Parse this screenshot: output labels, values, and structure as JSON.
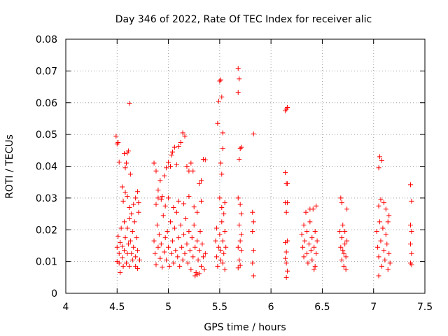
{
  "chart_data": {
    "type": "scatter",
    "title": "Day 346 of 2022, Rate Of TEC Index for receiver alic",
    "xlabel": "GPS time / hours",
    "ylabel": "ROTI / TECUs",
    "xlim": [
      4,
      7.5
    ],
    "ylim": [
      0,
      0.08
    ],
    "xticks": [
      4,
      4.5,
      5,
      5.5,
      6,
      6.5,
      7,
      7.5
    ],
    "xtick_labels": [
      "4",
      "4.5",
      "5",
      "5.5",
      "6",
      "6.5",
      "7",
      "7.5"
    ],
    "yticks": [
      0,
      0.01,
      0.02,
      0.03,
      0.04,
      0.05,
      0.06,
      0.07,
      0.08
    ],
    "ytick_labels": [
      "0",
      "0.01",
      "0.02",
      "0.03",
      "0.04",
      "0.05",
      "0.06",
      "0.07",
      "0.08"
    ],
    "grid": true,
    "marker": "+",
    "marker_color": "#ff0000",
    "series": [
      {
        "name": "ROTI",
        "points": [
          [
            4.49,
            0.0495
          ],
          [
            4.5,
            0.047
          ],
          [
            4.51,
            0.0475
          ],
          [
            4.52,
            0.0413
          ],
          [
            4.62,
            0.0598
          ],
          [
            4.57,
            0.044
          ],
          [
            4.58,
            0.0395
          ],
          [
            4.59,
            0.041
          ],
          [
            4.6,
            0.0442
          ],
          [
            4.61,
            0.0448
          ],
          [
            4.63,
            0.0375
          ],
          [
            4.55,
            0.0335
          ],
          [
            4.56,
            0.029
          ],
          [
            4.58,
            0.0318
          ],
          [
            4.6,
            0.0305
          ],
          [
            4.62,
            0.027
          ],
          [
            4.64,
            0.025
          ],
          [
            4.66,
            0.028
          ],
          [
            4.68,
            0.03
          ],
          [
            4.7,
            0.032
          ],
          [
            4.71,
            0.0285
          ],
          [
            4.5,
            0.0145
          ],
          [
            4.5,
            0.01
          ],
          [
            4.51,
            0.018
          ],
          [
            4.52,
            0.0095
          ],
          [
            4.52,
            0.0125
          ],
          [
            4.53,
            0.016
          ],
          [
            4.53,
            0.0065
          ],
          [
            4.54,
            0.0205
          ],
          [
            4.55,
            0.0112
          ],
          [
            4.55,
            0.0148
          ],
          [
            4.56,
            0.0085
          ],
          [
            4.57,
            0.0225
          ],
          [
            4.57,
            0.0135
          ],
          [
            4.58,
            0.0175
          ],
          [
            4.59,
            0.0095
          ],
          [
            4.6,
            0.0205
          ],
          [
            4.6,
            0.0125
          ],
          [
            4.61,
            0.0155
          ],
          [
            4.62,
            0.0085
          ],
          [
            4.62,
            0.0235
          ],
          [
            4.63,
            0.0165
          ],
          [
            4.64,
            0.0125
          ],
          [
            4.65,
            0.0195
          ],
          [
            4.65,
            0.0105
          ],
          [
            4.66,
            0.0145
          ],
          [
            4.67,
            0.0225
          ],
          [
            4.68,
            0.0115
          ],
          [
            4.68,
            0.0085
          ],
          [
            4.69,
            0.0175
          ],
          [
            4.7,
            0.0135
          ],
          [
            4.7,
            0.0078
          ],
          [
            4.71,
            0.0255
          ],
          [
            4.72,
            0.0105
          ],
          [
            4.86,
            0.041
          ],
          [
            4.88,
            0.0385
          ],
          [
            4.9,
            0.0325
          ],
          [
            4.92,
            0.0355
          ],
          [
            4.94,
            0.0305
          ],
          [
            4.96,
            0.037
          ],
          [
            4.98,
            0.0395
          ],
          [
            5.0,
            0.0412
          ],
          [
            5.02,
            0.04
          ],
          [
            5.03,
            0.0435
          ],
          [
            5.04,
            0.0445
          ],
          [
            5.06,
            0.046
          ],
          [
            5.08,
            0.0405
          ],
          [
            5.1,
            0.0462
          ],
          [
            5.12,
            0.0475
          ],
          [
            5.14,
            0.0505
          ],
          [
            5.16,
            0.0495
          ],
          [
            5.18,
            0.04
          ],
          [
            5.2,
            0.0385
          ],
          [
            5.22,
            0.041
          ],
          [
            5.24,
            0.0385
          ],
          [
            5.3,
            0.0345
          ],
          [
            5.32,
            0.0355
          ],
          [
            5.34,
            0.0422
          ],
          [
            5.36,
            0.042
          ],
          [
            4.88,
            0.028
          ],
          [
            4.9,
            0.03
          ],
          [
            4.93,
            0.0295
          ],
          [
            4.97,
            0.0275
          ],
          [
            5.0,
            0.03
          ],
          [
            5.05,
            0.027
          ],
          [
            5.1,
            0.029
          ],
          [
            5.15,
            0.0282
          ],
          [
            5.2,
            0.0305
          ],
          [
            5.25,
            0.0272
          ],
          [
            5.28,
            0.0255
          ],
          [
            5.32,
            0.029
          ],
          [
            4.86,
            0.0165
          ],
          [
            4.87,
            0.0125
          ],
          [
            4.88,
            0.009
          ],
          [
            4.89,
            0.0215
          ],
          [
            4.9,
            0.0145
          ],
          [
            4.91,
            0.0185
          ],
          [
            4.92,
            0.011
          ],
          [
            4.93,
            0.0155
          ],
          [
            4.94,
            0.0082
          ],
          [
            4.95,
            0.0245
          ],
          [
            4.96,
            0.013
          ],
          [
            4.97,
            0.0175
          ],
          [
            4.98,
            0.0105
          ],
          [
            4.99,
            0.0195
          ],
          [
            5.0,
            0.0145
          ],
          [
            5.01,
            0.0085
          ],
          [
            5.02,
            0.0225
          ],
          [
            5.03,
            0.0125
          ],
          [
            5.04,
            0.0165
          ],
          [
            5.05,
            0.0095
          ],
          [
            5.06,
            0.0205
          ],
          [
            5.07,
            0.0135
          ],
          [
            5.08,
            0.0255
          ],
          [
            5.09,
            0.0115
          ],
          [
            5.1,
            0.0175
          ],
          [
            5.11,
            0.0085
          ],
          [
            5.12,
            0.0215
          ],
          [
            5.13,
            0.0145
          ],
          [
            5.14,
            0.0105
          ],
          [
            5.15,
            0.0185
          ],
          [
            5.16,
            0.0125
          ],
          [
            5.17,
            0.0235
          ],
          [
            5.18,
            0.0155
          ],
          [
            5.19,
            0.0095
          ],
          [
            5.2,
            0.0195
          ],
          [
            5.21,
            0.0135
          ],
          [
            5.22,
            0.0075
          ],
          [
            5.23,
            0.0175
          ],
          [
            5.24,
            0.0115
          ],
          [
            5.25,
            0.0215
          ],
          [
            5.26,
            0.0145
          ],
          [
            5.27,
            0.0065
          ],
          [
            5.28,
            0.0165
          ],
          [
            5.29,
            0.0105
          ],
          [
            5.3,
            0.0135
          ],
          [
            5.31,
            0.0195
          ],
          [
            5.32,
            0.0085
          ],
          [
            5.33,
            0.0155
          ],
          [
            5.34,
            0.0115
          ],
          [
            5.35,
            0.0075
          ],
          [
            5.36,
            0.0125
          ],
          [
            5.26,
            0.0055
          ],
          [
            5.28,
            0.0058
          ],
          [
            5.3,
            0.0062
          ],
          [
            5.48,
            0.0535
          ],
          [
            5.49,
            0.0605
          ],
          [
            5.5,
            0.0668
          ],
          [
            5.51,
            0.0672
          ],
          [
            5.52,
            0.0618
          ],
          [
            5.53,
            0.0505
          ],
          [
            5.53,
            0.0455
          ],
          [
            5.52,
            0.0375
          ],
          [
            5.51,
            0.041
          ],
          [
            5.5,
            0.03
          ],
          [
            5.52,
            0.027
          ],
          [
            5.54,
            0.025
          ],
          [
            5.55,
            0.0285
          ],
          [
            5.46,
            0.0165
          ],
          [
            5.47,
            0.0115
          ],
          [
            5.47,
            0.0205
          ],
          [
            5.48,
            0.0085
          ],
          [
            5.49,
            0.0145
          ],
          [
            5.5,
            0.0185
          ],
          [
            5.51,
            0.0105
          ],
          [
            5.51,
            0.0135
          ],
          [
            5.52,
            0.0225
          ],
          [
            5.53,
            0.0095
          ],
          [
            5.53,
            0.0165
          ],
          [
            5.54,
            0.0125
          ],
          [
            5.55,
            0.0195
          ],
          [
            5.55,
            0.0075
          ],
          [
            5.56,
            0.0145
          ],
          [
            5.68,
            0.0708
          ],
          [
            5.69,
            0.0675
          ],
          [
            5.68,
            0.0632
          ],
          [
            5.7,
            0.0455
          ],
          [
            5.71,
            0.046
          ],
          [
            5.69,
            0.0422
          ],
          [
            5.68,
            0.03
          ],
          [
            5.7,
            0.028
          ],
          [
            5.71,
            0.025
          ],
          [
            5.69,
            0.0215
          ],
          [
            5.7,
            0.0165
          ],
          [
            5.68,
            0.0145
          ],
          [
            5.71,
            0.0135
          ],
          [
            5.69,
            0.0105
          ],
          [
            5.7,
            0.0088
          ],
          [
            5.68,
            0.008
          ],
          [
            5.71,
            0.0185
          ],
          [
            5.83,
            0.0502
          ],
          [
            5.82,
            0.0255
          ],
          [
            5.83,
            0.0225
          ],
          [
            5.82,
            0.0195
          ],
          [
            5.83,
            0.0135
          ],
          [
            5.82,
            0.0095
          ],
          [
            5.83,
            0.0055
          ],
          [
            6.14,
            0.0575
          ],
          [
            6.15,
            0.058
          ],
          [
            6.16,
            0.0585
          ],
          [
            6.14,
            0.038
          ],
          [
            6.15,
            0.0345
          ],
          [
            6.16,
            0.0345
          ],
          [
            6.14,
            0.0285
          ],
          [
            6.15,
            0.0255
          ],
          [
            6.16,
            0.0285
          ],
          [
            6.14,
            0.016
          ],
          [
            6.15,
            0.013
          ],
          [
            6.16,
            0.0165
          ],
          [
            6.14,
            0.011
          ],
          [
            6.15,
            0.0095
          ],
          [
            6.16,
            0.007
          ],
          [
            6.15,
            0.005
          ],
          [
            6.3,
            0.0185
          ],
          [
            6.31,
            0.0145
          ],
          [
            6.32,
            0.0215
          ],
          [
            6.32,
            0.0115
          ],
          [
            6.33,
            0.0165
          ],
          [
            6.34,
            0.0255
          ],
          [
            6.35,
            0.0125
          ],
          [
            6.35,
            0.0195
          ],
          [
            6.36,
            0.0095
          ],
          [
            6.37,
            0.0155
          ],
          [
            6.38,
            0.0225
          ],
          [
            6.39,
            0.0135
          ],
          [
            6.4,
            0.0175
          ],
          [
            6.4,
            0.0105
          ],
          [
            6.41,
            0.0265
          ],
          [
            6.42,
            0.0145
          ],
          [
            6.43,
            0.0085
          ],
          [
            6.43,
            0.0195
          ],
          [
            6.44,
            0.0275
          ],
          [
            6.44,
            0.0125
          ],
          [
            6.45,
            0.0165
          ],
          [
            6.42,
            0.0075
          ],
          [
            6.38,
            0.0265
          ],
          [
            6.68,
            0.03
          ],
          [
            6.69,
            0.0285
          ],
          [
            6.74,
            0.0265
          ],
          [
            6.67,
            0.0195
          ],
          [
            6.68,
            0.0145
          ],
          [
            6.69,
            0.0175
          ],
          [
            6.69,
            0.0105
          ],
          [
            6.7,
            0.0215
          ],
          [
            6.7,
            0.0135
          ],
          [
            6.71,
            0.0085
          ],
          [
            6.72,
            0.0155
          ],
          [
            6.72,
            0.0195
          ],
          [
            6.73,
            0.0115
          ],
          [
            6.73,
            0.0075
          ],
          [
            6.74,
            0.0165
          ],
          [
            6.71,
            0.0125
          ],
          [
            7.03,
            0.0195
          ],
          [
            7.04,
            0.0145
          ],
          [
            7.05,
            0.0115
          ],
          [
            7.05,
            0.0055
          ],
          [
            7.06,
            0.0225
          ],
          [
            7.07,
            0.0165
          ],
          [
            7.08,
            0.0085
          ],
          [
            7.09,
            0.0205
          ],
          [
            7.1,
            0.0135
          ],
          [
            7.11,
            0.0105
          ],
          [
            7.12,
            0.0185
          ],
          [
            7.13,
            0.0155
          ],
          [
            7.14,
            0.0075
          ],
          [
            7.15,
            0.0125
          ],
          [
            7.16,
            0.0095
          ],
          [
            7.05,
            0.0275
          ],
          [
            7.07,
            0.0295
          ],
          [
            7.1,
            0.0285
          ],
          [
            7.12,
            0.0265
          ],
          [
            7.15,
            0.0245
          ],
          [
            7.14,
            0.0225
          ],
          [
            7.06,
            0.043
          ],
          [
            7.08,
            0.0418
          ],
          [
            7.05,
            0.0395
          ],
          [
            7.36,
            0.0342
          ],
          [
            7.37,
            0.029
          ],
          [
            7.36,
            0.0215
          ],
          [
            7.37,
            0.0195
          ],
          [
            7.36,
            0.0155
          ],
          [
            7.37,
            0.0125
          ],
          [
            7.36,
            0.0095
          ],
          [
            7.37,
            0.009
          ]
        ]
      }
    ]
  }
}
